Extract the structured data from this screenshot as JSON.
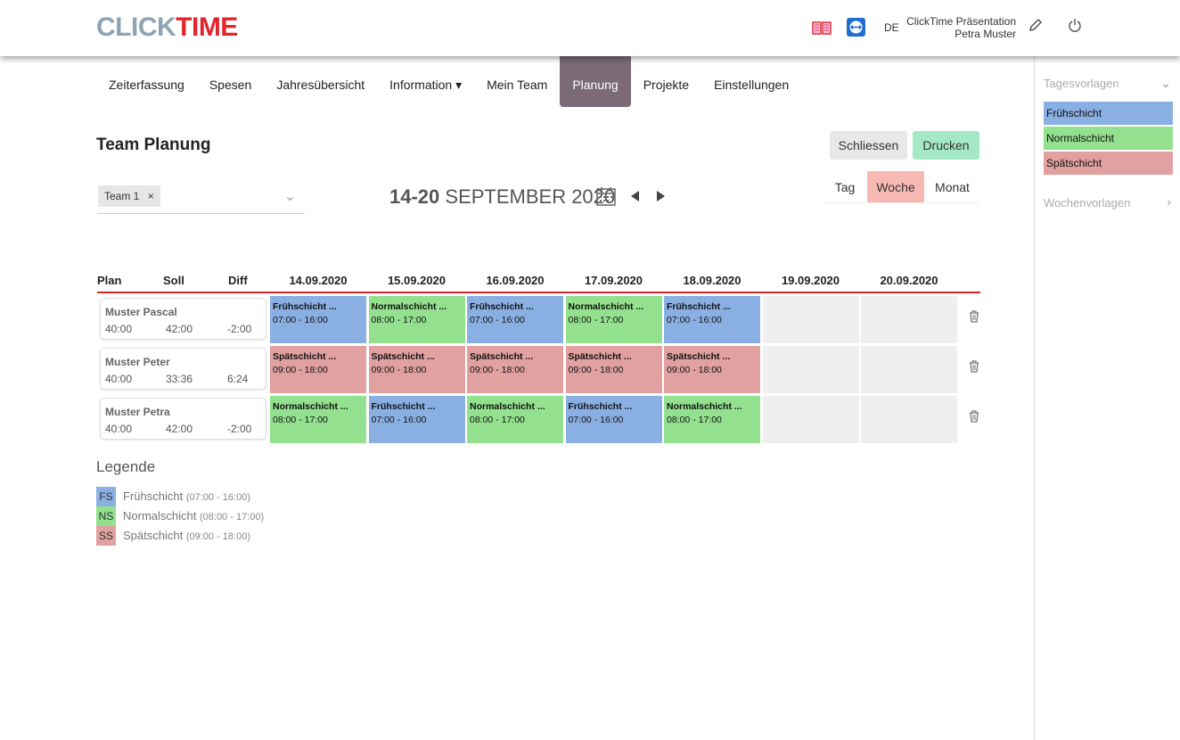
{
  "header": {
    "logo_a": "CLICK",
    "logo_b": "TIME",
    "language": "DE",
    "company": "ClickTime Präsentation",
    "user": "Petra Muster",
    "icons": [
      "manual-book-icon",
      "teamviewer-icon",
      "pencil-icon",
      "power-icon"
    ]
  },
  "nav": [
    {
      "label": "Zeiterfassung"
    },
    {
      "label": "Spesen"
    },
    {
      "label": "Jahresübersicht"
    },
    {
      "label": "Information ▾"
    },
    {
      "label": "Mein Team"
    },
    {
      "label": "Planung",
      "active": true
    },
    {
      "label": "Projekte"
    },
    {
      "label": "Einstellungen"
    }
  ],
  "page": {
    "title": "Team Planung",
    "close": "Schliessen",
    "print": "Drucken",
    "team_chip": "Team 1",
    "range_bold": "14-20",
    "range_rest": " SEPTEMBER 2020",
    "views": [
      "Tag",
      "Woche",
      "Monat"
    ],
    "active_view": "Woche"
  },
  "sidebar": {
    "day_templates": "Tagesvorlagen",
    "templates": [
      "Frühschicht",
      "Normalschicht",
      "Spätschicht"
    ],
    "week_templates": "Wochenvorlagen"
  },
  "colors": {
    "FS": "#8ab0e3",
    "NS": "#93e08e",
    "SS": "#e0a1a0"
  },
  "grid": {
    "headers": [
      "Plan",
      "Soll",
      "Diff"
    ],
    "dates": [
      "14.09.2020",
      "15.09.2020",
      "16.09.2020",
      "17.09.2020",
      "18.09.2020",
      "19.09.2020",
      "20.09.2020"
    ],
    "rows": [
      {
        "name": "Muster Pascal",
        "plan": "40:00",
        "soll": "42:00",
        "diff": "-2:00",
        "shifts": [
          {
            "t": "FS",
            "name": "Frühschicht ...",
            "time": "07:00 - 16:00"
          },
          {
            "t": "NS",
            "name": "Normalschicht ...",
            "time": "08:00 - 17:00"
          },
          {
            "t": "FS",
            "name": "Frühschicht ...",
            "time": "07:00 - 16:00"
          },
          {
            "t": "NS",
            "name": "Normalschicht ...",
            "time": "08:00 - 17:00"
          },
          {
            "t": "FS",
            "name": "Frühschicht ...",
            "time": "07:00 - 16:00"
          }
        ]
      },
      {
        "name": "Muster Peter",
        "plan": "40:00",
        "soll": "33:36",
        "diff": "6:24",
        "shifts": [
          {
            "t": "SS",
            "name": "Spätschicht ...",
            "time": "09:00 - 18:00"
          },
          {
            "t": "SS",
            "name": "Spätschicht ...",
            "time": "09:00 - 18:00"
          },
          {
            "t": "SS",
            "name": "Spätschicht ...",
            "time": "09:00 - 18:00"
          },
          {
            "t": "SS",
            "name": "Spätschicht ...",
            "time": "09:00 - 18:00"
          },
          {
            "t": "SS",
            "name": "Spätschicht ...",
            "time": "09:00 - 18:00"
          }
        ]
      },
      {
        "name": "Muster Petra",
        "plan": "40:00",
        "soll": "42:00",
        "diff": "-2:00",
        "shifts": [
          {
            "t": "NS",
            "name": "Normalschicht ...",
            "time": "08:00 - 17:00"
          },
          {
            "t": "FS",
            "name": "Frühschicht ...",
            "time": "07:00 - 16:00"
          },
          {
            "t": "NS",
            "name": "Normalschicht ...",
            "time": "08:00 - 17:00"
          },
          {
            "t": "FS",
            "name": "Frühschicht ...",
            "time": "07:00 - 16:00"
          },
          {
            "t": "NS",
            "name": "Normalschicht ...",
            "time": "08:00 - 17:00"
          }
        ]
      }
    ]
  },
  "legend": {
    "title": "Legende",
    "items": [
      {
        "code": "FS",
        "name": "Frühschicht",
        "time": "(07:00 - 16:00)"
      },
      {
        "code": "NS",
        "name": "Normalschicht",
        "time": "(08:00 - 17:00)"
      },
      {
        "code": "SS",
        "name": "Spätschicht",
        "time": "(09:00 - 18:00)"
      }
    ]
  }
}
